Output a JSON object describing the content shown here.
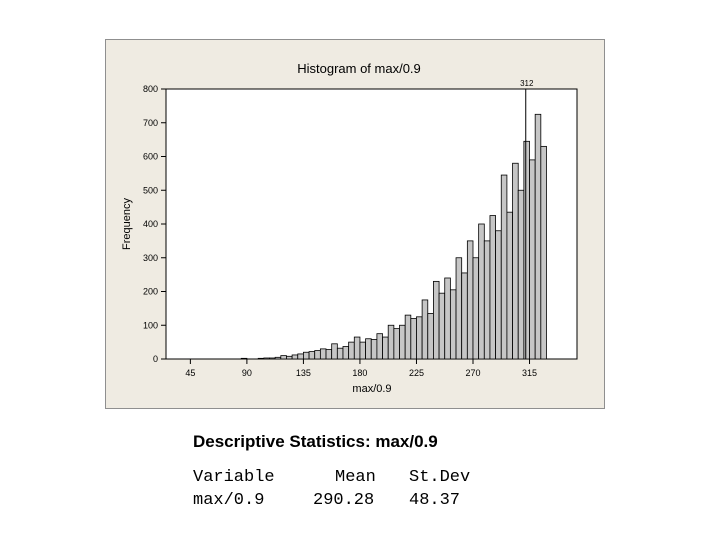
{
  "chart_data": {
    "type": "bar",
    "title": "Histogram of max/0.9",
    "xlabel": "max/0.9",
    "ylabel": "Frequency",
    "xlim": [
      25.6,
      352.8
    ],
    "ylim": [
      0,
      800
    ],
    "x_ticks": [
      45,
      90,
      135,
      180,
      225,
      270,
      315
    ],
    "x_tick_labels": [
      "45",
      "90",
      "135",
      "180",
      "225",
      "270",
      "315"
    ],
    "y_ticks": [
      0,
      100,
      200,
      300,
      400,
      500,
      600,
      700,
      800
    ],
    "y_tick_labels": [
      "0",
      "100",
      "200",
      "300",
      "400",
      "500",
      "600",
      "700",
      "800"
    ],
    "bin_width": 4.5,
    "bins_start": 27,
    "values": [
      0,
      0,
      0,
      0,
      0,
      0,
      0,
      0,
      0,
      0,
      0,
      0,
      0,
      2,
      0,
      0,
      2,
      3,
      3,
      5,
      10,
      8,
      12,
      15,
      20,
      22,
      25,
      30,
      28,
      45,
      32,
      37,
      50,
      65,
      50,
      60,
      58,
      75,
      65,
      100,
      90,
      100,
      130,
      120,
      125,
      175,
      135,
      230,
      195,
      240,
      205,
      300,
      255,
      350,
      300,
      400,
      350,
      425,
      380,
      545,
      435,
      580,
      500,
      645,
      590,
      725,
      630
    ],
    "reference_line": {
      "x": 312,
      "label": "312"
    },
    "grid": false,
    "legend": "none"
  },
  "stats": {
    "title": "Descriptive Statistics: max/0.9",
    "headers": [
      "Variable",
      "Mean",
      "St.Dev"
    ],
    "row": [
      "max/0.9",
      "290.28",
      "48.37"
    ]
  }
}
